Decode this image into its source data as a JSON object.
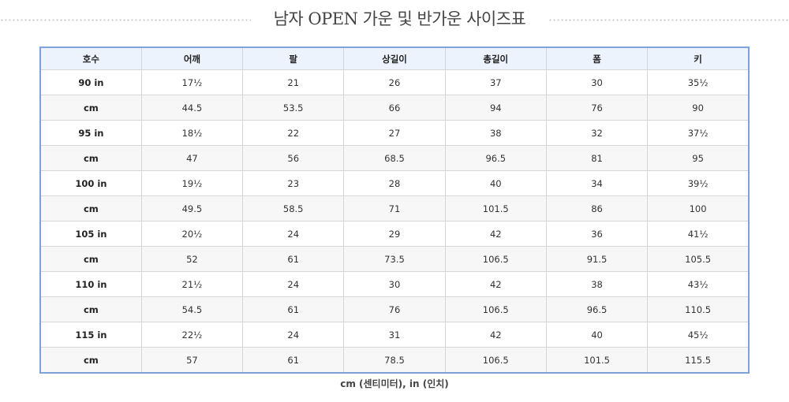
{
  "title": "남자 OPEN 가운 및 반가운 사이즈표",
  "table": {
    "headers": [
      "호수",
      "어깨",
      "팔",
      "상길이",
      "총길이",
      "폼",
      "키"
    ],
    "rows": [
      [
        "90 in",
        "17½",
        "21",
        "26",
        "37",
        "30",
        "35½"
      ],
      [
        "cm",
        "44.5",
        "53.5",
        "66",
        "94",
        "76",
        "90"
      ],
      [
        "95 in",
        "18½",
        "22",
        "27",
        "38",
        "32",
        "37½"
      ],
      [
        "cm",
        "47",
        "56",
        "68.5",
        "96.5",
        "81",
        "95"
      ],
      [
        "100 in",
        "19½",
        "23",
        "28",
        "40",
        "34",
        "39½"
      ],
      [
        "cm",
        "49.5",
        "58.5",
        "71",
        "101.5",
        "86",
        "100"
      ],
      [
        "105 in",
        "20½",
        "24",
        "29",
        "42",
        "36",
        "41½"
      ],
      [
        "cm",
        "52",
        "61",
        "73.5",
        "106.5",
        "91.5",
        "105.5"
      ],
      [
        "110 in",
        "21½",
        "24",
        "30",
        "42",
        "38",
        "43½"
      ],
      [
        "cm",
        "54.5",
        "61",
        "76",
        "106.5",
        "96.5",
        "110.5"
      ],
      [
        "115 in",
        "22½",
        "24",
        "31",
        "42",
        "40",
        "45½"
      ],
      [
        "cm",
        "57",
        "61",
        "78.5",
        "106.5",
        "101.5",
        "115.5"
      ]
    ]
  },
  "footnote": "cm (센티미터), in (인치)"
}
